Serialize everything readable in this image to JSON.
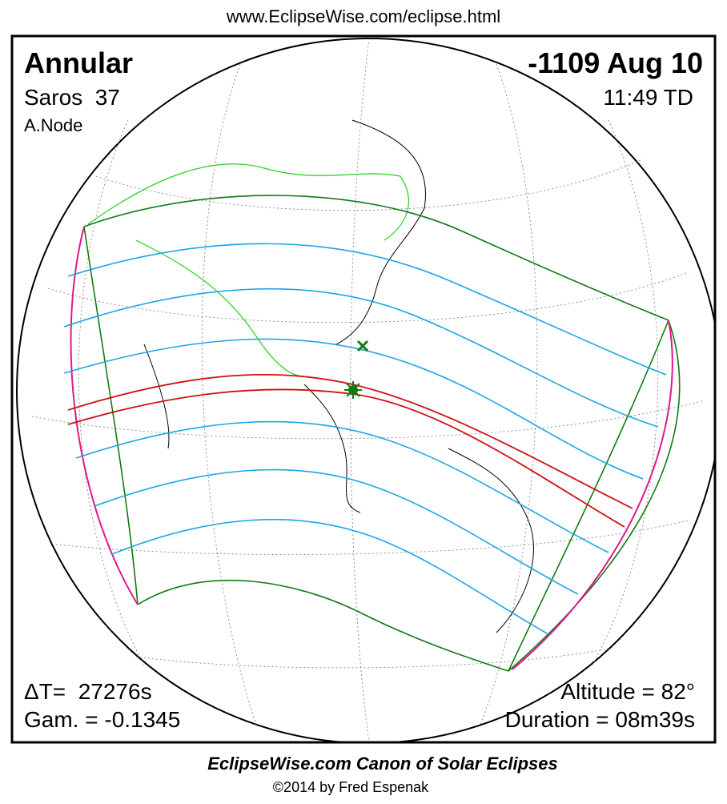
{
  "header": {
    "url": "www.EclipseWise.com/eclipse.html"
  },
  "panel": {
    "eclipse_type": "Annular",
    "date": "-1109 Aug 10",
    "saros": "Saros  37",
    "time": "11:49 TD",
    "node": "A.Node",
    "delta_t": "ΔT=  27276s",
    "gamma": "Gam. = -0.1345",
    "altitude": "Altitude = 82°",
    "duration": "Duration = 08m39s"
  },
  "footer": {
    "title": "EclipseWise.com Canon of Solar Eclipses",
    "credit": "©2014 by Fred Espenak"
  }
}
